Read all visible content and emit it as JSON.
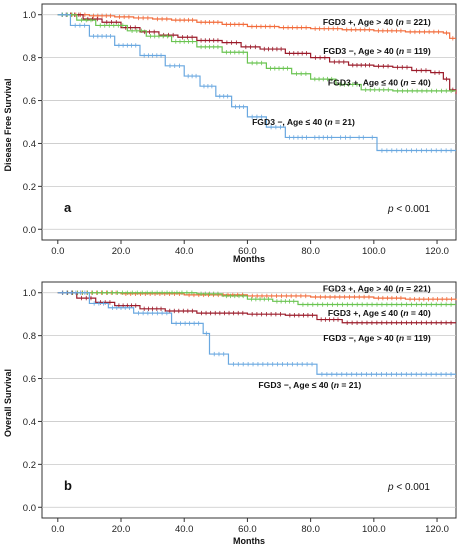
{
  "chart_data": [
    {
      "type": "line",
      "panel_label": "a",
      "ylabel": "Disease Free Survival",
      "xlabel": "Months",
      "xlim": [
        -5,
        126
      ],
      "ylim": [
        -0.05,
        1.05
      ],
      "x_ticks": [
        0,
        20,
        40,
        60,
        80,
        100,
        120
      ],
      "x_tick_labels": [
        "0.0",
        "20.0",
        "40.0",
        "60.0",
        "80.0",
        "100.0",
        "120.0"
      ],
      "y_ticks": [
        0,
        0.2,
        0.4,
        0.6,
        0.8,
        1.0
      ],
      "y_tick_labels": [
        "0.0",
        "0.2",
        "0.4",
        "0.6",
        "0.8",
        "1.0"
      ],
      "grid": "horizontal",
      "p_value": {
        "italic": "p",
        "rest": " < 0.001"
      },
      "series": [
        {
          "name": "FGD3 +, Age > 40 (n = 221)",
          "name_parts": [
            [
              "FGD3 +, Age > 40 (",
              false
            ],
            [
              "n",
              true
            ],
            [
              " = 221)",
              false
            ]
          ],
          "label_anchor": [
            118,
            0.965
          ],
          "color": "#f26b3a",
          "x": [
            0,
            10,
            18,
            24,
            30,
            36,
            44,
            52,
            60,
            70,
            80,
            90,
            100,
            110,
            122,
            124,
            126
          ],
          "y": [
            1.0,
            0.995,
            0.99,
            0.985,
            0.98,
            0.975,
            0.965,
            0.955,
            0.945,
            0.94,
            0.935,
            0.93,
            0.925,
            0.92,
            0.915,
            0.89,
            0.89
          ]
        },
        {
          "name": "FGD3 −, Age > 40 (n = 119)",
          "name_parts": [
            [
              "FGD3 −, Age > 40 (",
              false
            ],
            [
              "n",
              true
            ],
            [
              " = 119)",
              false
            ]
          ],
          "label_anchor": [
            118,
            0.83
          ],
          "color": "#9b1b2a",
          "x": [
            0,
            8,
            14,
            20,
            26,
            32,
            38,
            44,
            52,
            58,
            64,
            72,
            80,
            86,
            92,
            100,
            106,
            112,
            118,
            122,
            124,
            126
          ],
          "y": [
            1.0,
            0.98,
            0.965,
            0.94,
            0.92,
            0.905,
            0.895,
            0.88,
            0.87,
            0.85,
            0.84,
            0.82,
            0.8,
            0.78,
            0.765,
            0.76,
            0.755,
            0.74,
            0.73,
            0.7,
            0.65,
            0.63
          ]
        },
        {
          "name": "FGD3 +, Age ≤ 40 (n = 40)",
          "name_parts": [
            [
              "FGD3 +, Age ≤ 40 (",
              false
            ],
            [
              "n",
              true
            ],
            [
              " = 40)",
              false
            ]
          ],
          "label_anchor": [
            118,
            0.685
          ],
          "color": "#6ac451",
          "x": [
            0,
            6,
            12,
            22,
            28,
            36,
            44,
            52,
            60,
            66,
            74,
            80,
            88,
            96,
            106,
            126
          ],
          "y": [
            1.0,
            0.975,
            0.95,
            0.925,
            0.9,
            0.875,
            0.85,
            0.825,
            0.775,
            0.75,
            0.725,
            0.7,
            0.675,
            0.65,
            0.645,
            0.645
          ]
        },
        {
          "name": "FGD3 −, Age ≤ 40 (n = 21)",
          "name_parts": [
            [
              "FGD3 −, Age ≤ 40 (",
              false
            ],
            [
              "n",
              true
            ],
            [
              " = 21)",
              false
            ]
          ],
          "label_anchor": [
            94,
            0.5
          ],
          "color": "#6aa8e0",
          "x": [
            0,
            4,
            10,
            18,
            26,
            34,
            40,
            45,
            50,
            55,
            60,
            66,
            72,
            80,
            88,
            94,
            98,
            101,
            126
          ],
          "y": [
            1.0,
            0.95,
            0.9,
            0.857,
            0.81,
            0.762,
            0.714,
            0.667,
            0.62,
            0.571,
            0.524,
            0.476,
            0.428,
            0.428,
            0.428,
            0.428,
            0.428,
            0.367,
            0.367
          ]
        }
      ]
    },
    {
      "type": "line",
      "panel_label": "b",
      "ylabel": "Overall Survival",
      "xlabel": "Months",
      "xlim": [
        -5,
        126
      ],
      "ylim": [
        -0.05,
        1.05
      ],
      "x_ticks": [
        0,
        20,
        40,
        60,
        80,
        100,
        120
      ],
      "x_tick_labels": [
        "0.0",
        "20.0",
        "40.0",
        "60.0",
        "80.0",
        "100.0",
        "120.0"
      ],
      "y_ticks": [
        0,
        0.2,
        0.4,
        0.6,
        0.8,
        1.0
      ],
      "y_tick_labels": [
        "0.0",
        "0.2",
        "0.4",
        "0.6",
        "0.8",
        "1.0"
      ],
      "grid": "horizontal",
      "p_value": {
        "italic": "p",
        "rest": " < 0.001"
      },
      "series": [
        {
          "name": "FGD3 +, Age > 40 (n = 221)",
          "name_parts": [
            [
              "FGD3 +, Age > 40 (",
              false
            ],
            [
              "n",
              true
            ],
            [
              " = 221)",
              false
            ]
          ],
          "label_anchor": [
            118,
            1.02
          ],
          "color": "#f26b3a",
          "x": [
            0,
            20,
            40,
            60,
            80,
            100,
            110,
            126
          ],
          "y": [
            1.0,
            0.995,
            0.99,
            0.985,
            0.98,
            0.975,
            0.97,
            0.965
          ]
        },
        {
          "name": "FGD3 +, Age ≤ 40 (n = 40)",
          "name_parts": [
            [
              "FGD3 +, Age ≤ 40 (",
              false
            ],
            [
              "n",
              true
            ],
            [
              " = 40)",
              false
            ]
          ],
          "label_anchor": [
            118,
            0.905
          ],
          "color": "#6ac451",
          "x": [
            0,
            44,
            52,
            60,
            68,
            76,
            126
          ],
          "y": [
            1.0,
            0.995,
            0.985,
            0.97,
            0.96,
            0.945,
            0.945
          ]
        },
        {
          "name": "FGD3 −, Age > 40 (n = 119)",
          "name_parts": [
            [
              "FGD3 −, Age > 40 (",
              false
            ],
            [
              "n",
              true
            ],
            [
              " = 119)",
              false
            ]
          ],
          "label_anchor": [
            118,
            0.79
          ],
          "color": "#9b1b2a",
          "x": [
            0,
            6,
            12,
            18,
            26,
            34,
            44,
            60,
            72,
            82,
            90,
            126
          ],
          "y": [
            1.0,
            0.975,
            0.955,
            0.94,
            0.925,
            0.915,
            0.905,
            0.9,
            0.895,
            0.875,
            0.86,
            0.86
          ]
        },
        {
          "name": "FGD3 −, Age ≤ 40 (n = 21)",
          "name_parts": [
            [
              "FGD3 −, Age ≤ 40 (",
              false
            ],
            [
              "n",
              true
            ],
            [
              " = 21)",
              false
            ]
          ],
          "label_anchor": [
            96,
            0.57
          ],
          "color": "#6aa8e0",
          "x": [
            0,
            10,
            16,
            24,
            36,
            46,
            48,
            54,
            82,
            126
          ],
          "y": [
            1.0,
            0.95,
            0.93,
            0.905,
            0.857,
            0.81,
            0.714,
            0.667,
            0.62,
            0.62
          ]
        }
      ]
    }
  ]
}
